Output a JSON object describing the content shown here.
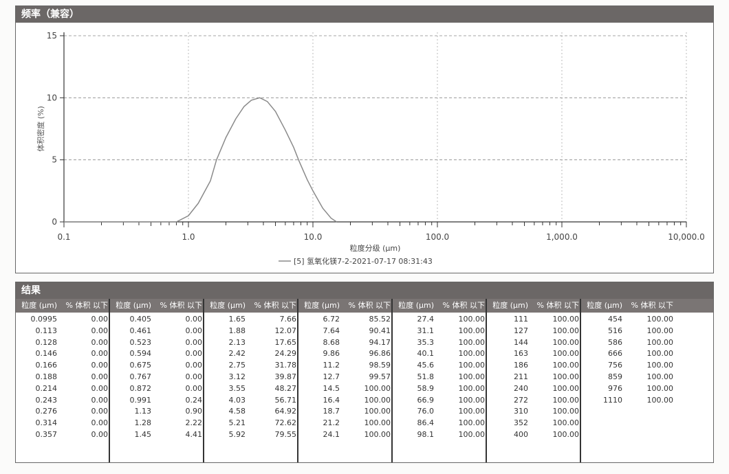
{
  "chart_panel": {
    "title": "频率（兼容）"
  },
  "chart_data": {
    "type": "line",
    "xlabel": "粒度分级 (μm)",
    "ylabel": "体积密度 (%)",
    "xscale": "log",
    "xlim": [
      0.1,
      10000
    ],
    "ylim": [
      0,
      15
    ],
    "x_ticks": [
      "0.1",
      "1.0",
      "10.0",
      "100.0",
      "1,000.0",
      "10,000.0"
    ],
    "y_ticks": [
      "0",
      "5",
      "10",
      "15"
    ],
    "grid": true,
    "legend_position": "bottom-center",
    "series": [
      {
        "name": "[5] 氢氧化镁7-2-2021-07-17 08:31:43",
        "color": "#8a8a8a",
        "x": [
          0.8,
          1.0,
          1.2,
          1.5,
          1.68,
          2.0,
          2.4,
          2.8,
          3.2,
          3.74,
          4.3,
          5.0,
          6.0,
          7.0,
          7.67,
          9.0,
          10.0,
          12.0,
          14.0,
          15.5
        ],
        "y": [
          0,
          0.5,
          1.5,
          3.3,
          5.0,
          6.8,
          8.3,
          9.3,
          9.8,
          10.0,
          9.7,
          8.9,
          7.4,
          6.0,
          5.0,
          3.4,
          2.5,
          1.1,
          0.3,
          0
        ]
      }
    ]
  },
  "table_panel": {
    "title": "结果",
    "col_size": "粒度 (μm)",
    "col_pct": "% 体积 以下",
    "groups": [
      [
        [
          "0.0995",
          "0.00"
        ],
        [
          "0.113",
          "0.00"
        ],
        [
          "0.128",
          "0.00"
        ],
        [
          "0.146",
          "0.00"
        ],
        [
          "0.166",
          "0.00"
        ],
        [
          "0.188",
          "0.00"
        ],
        [
          "0.214",
          "0.00"
        ],
        [
          "0.243",
          "0.00"
        ],
        [
          "0.276",
          "0.00"
        ],
        [
          "0.314",
          "0.00"
        ],
        [
          "0.357",
          "0.00"
        ]
      ],
      [
        [
          "0.405",
          "0.00"
        ],
        [
          "0.461",
          "0.00"
        ],
        [
          "0.523",
          "0.00"
        ],
        [
          "0.594",
          "0.00"
        ],
        [
          "0.675",
          "0.00"
        ],
        [
          "0.767",
          "0.00"
        ],
        [
          "0.872",
          "0.00"
        ],
        [
          "0.991",
          "0.24"
        ],
        [
          "1.13",
          "0.90"
        ],
        [
          "1.28",
          "2.22"
        ],
        [
          "1.45",
          "4.41"
        ]
      ],
      [
        [
          "1.65",
          "7.66"
        ],
        [
          "1.88",
          "12.07"
        ],
        [
          "2.13",
          "17.65"
        ],
        [
          "2.42",
          "24.29"
        ],
        [
          "2.75",
          "31.78"
        ],
        [
          "3.12",
          "39.87"
        ],
        [
          "3.55",
          "48.27"
        ],
        [
          "4.03",
          "56.71"
        ],
        [
          "4.58",
          "64.92"
        ],
        [
          "5.21",
          "72.62"
        ],
        [
          "5.92",
          "79.55"
        ]
      ],
      [
        [
          "6.72",
          "85.52"
        ],
        [
          "7.64",
          "90.41"
        ],
        [
          "8.68",
          "94.17"
        ],
        [
          "9.86",
          "96.86"
        ],
        [
          "11.2",
          "98.59"
        ],
        [
          "12.7",
          "99.57"
        ],
        [
          "14.5",
          "100.00"
        ],
        [
          "16.4",
          "100.00"
        ],
        [
          "18.7",
          "100.00"
        ],
        [
          "21.2",
          "100.00"
        ],
        [
          "24.1",
          "100.00"
        ]
      ],
      [
        [
          "27.4",
          "100.00"
        ],
        [
          "31.1",
          "100.00"
        ],
        [
          "35.3",
          "100.00"
        ],
        [
          "40.1",
          "100.00"
        ],
        [
          "45.6",
          "100.00"
        ],
        [
          "51.8",
          "100.00"
        ],
        [
          "58.9",
          "100.00"
        ],
        [
          "66.9",
          "100.00"
        ],
        [
          "76.0",
          "100.00"
        ],
        [
          "86.4",
          "100.00"
        ],
        [
          "98.1",
          "100.00"
        ]
      ],
      [
        [
          "111",
          "100.00"
        ],
        [
          "127",
          "100.00"
        ],
        [
          "144",
          "100.00"
        ],
        [
          "163",
          "100.00"
        ],
        [
          "186",
          "100.00"
        ],
        [
          "211",
          "100.00"
        ],
        [
          "240",
          "100.00"
        ],
        [
          "272",
          "100.00"
        ],
        [
          "310",
          "100.00"
        ],
        [
          "352",
          "100.00"
        ],
        [
          "400",
          "100.00"
        ]
      ],
      [
        [
          "454",
          "100.00"
        ],
        [
          "516",
          "100.00"
        ],
        [
          "586",
          "100.00"
        ],
        [
          "666",
          "100.00"
        ],
        [
          "756",
          "100.00"
        ],
        [
          "859",
          "100.00"
        ],
        [
          "976",
          "100.00"
        ],
        [
          "1110",
          "100.00"
        ]
      ]
    ]
  }
}
